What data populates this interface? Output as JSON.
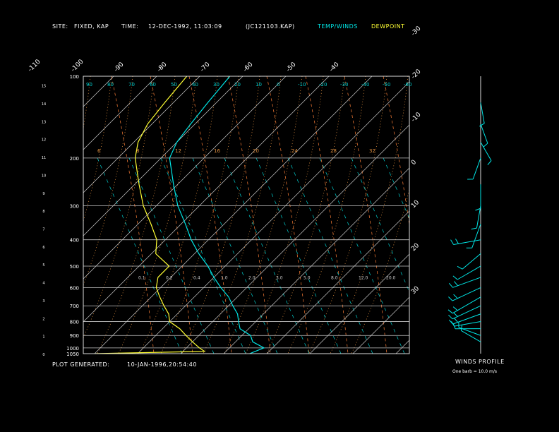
{
  "header": {
    "site_label": "SITE:",
    "site_value": "FIXED, KAP",
    "time_label": "TIME:",
    "time_value": "12-DEC-1992, 11:03:09",
    "file_id": "(JC121103.KAP)",
    "legend_temp": "TEMP/WINDS",
    "legend_dew": "DEWPOINT"
  },
  "footer": {
    "generated_label": "PLOT GENERATED:",
    "generated_value": "10-JAN-1996,20:54:40",
    "winds_title": "WINDS PROFILE",
    "barb_note": "One barb = 10.0 m/s"
  },
  "colors": {
    "background": "#000000",
    "temp": "#00e5e5",
    "dewpoint": "#ffff33",
    "isobar": "#c8c8c8",
    "isotherm": "#c8c8c8",
    "dry_adiabat": "#e09040",
    "mixing_ratio": "#00d0d0",
    "moist_adiabat": "#e07030"
  },
  "chart_data": {
    "type": "line",
    "title": "",
    "xlabel": "",
    "ylabel": "",
    "pressure_levels": [
      100,
      200,
      300,
      400,
      500,
      600,
      700,
      800,
      900,
      1000,
      1050
    ],
    "height_ticks_km": [
      0,
      1,
      2,
      3,
      4,
      5,
      6,
      7,
      8,
      9,
      10,
      11,
      12,
      13,
      14,
      15
    ],
    "isotherm_top_labels": [
      -110,
      -100,
      -90,
      -80,
      -70,
      -60,
      -50,
      -40
    ],
    "isotherm_right_labels": [
      -30,
      -20,
      -10,
      0,
      10,
      20,
      30
    ],
    "dry_adiabat_labels": [
      "90",
      "80",
      "70",
      "60",
      "50",
      "40",
      "30",
      "20",
      "10",
      "0",
      "-10",
      "-20",
      "-30",
      "-40",
      "-50",
      "-60",
      "-70"
    ],
    "mixing_ratio_labels": [
      "0.1",
      "0.2",
      "0.4",
      "1.0",
      "2.0",
      "3.0",
      "5.0",
      "8.0",
      "12.0",
      "20.0"
    ],
    "moist_adiabat_labels": [
      "6",
      "8",
      "12",
      "16",
      "20",
      "24",
      "28",
      "32"
    ],
    "temperature": [
      {
        "p": 1050,
        "t": 6
      },
      {
        "p": 1000,
        "t": 8
      },
      {
        "p": 950,
        "t": 4
      },
      {
        "p": 900,
        "t": 2
      },
      {
        "p": 850,
        "t": -2
      },
      {
        "p": 800,
        "t": -4
      },
      {
        "p": 750,
        "t": -6
      },
      {
        "p": 700,
        "t": -9
      },
      {
        "p": 650,
        "t": -12
      },
      {
        "p": 600,
        "t": -16
      },
      {
        "p": 550,
        "t": -20
      },
      {
        "p": 500,
        "t": -24
      },
      {
        "p": 450,
        "t": -29
      },
      {
        "p": 400,
        "t": -34
      },
      {
        "p": 350,
        "t": -39
      },
      {
        "p": 300,
        "t": -45
      },
      {
        "p": 250,
        "t": -51
      },
      {
        "p": 200,
        "t": -58
      },
      {
        "p": 175,
        "t": -60
      },
      {
        "p": 150,
        "t": -61
      },
      {
        "p": 125,
        "t": -62
      },
      {
        "p": 100,
        "t": -63
      }
    ],
    "dewpoint": [
      {
        "p": 1050,
        "t": -30
      },
      {
        "p": 1030,
        "t": -5
      },
      {
        "p": 1000,
        "t": -7
      },
      {
        "p": 950,
        "t": -10
      },
      {
        "p": 900,
        "t": -13
      },
      {
        "p": 850,
        "t": -16
      },
      {
        "p": 800,
        "t": -20
      },
      {
        "p": 750,
        "t": -22
      },
      {
        "p": 700,
        "t": -25
      },
      {
        "p": 650,
        "t": -28
      },
      {
        "p": 600,
        "t": -31
      },
      {
        "p": 550,
        "t": -33
      },
      {
        "p": 500,
        "t": -33
      },
      {
        "p": 450,
        "t": -39
      },
      {
        "p": 400,
        "t": -42
      },
      {
        "p": 350,
        "t": -47
      },
      {
        "p": 300,
        "t": -53
      },
      {
        "p": 250,
        "t": -59
      },
      {
        "p": 200,
        "t": -66
      },
      {
        "p": 175,
        "t": -69
      },
      {
        "p": 150,
        "t": -71
      },
      {
        "p": 125,
        "t": -72
      },
      {
        "p": 100,
        "t": -73
      }
    ],
    "winds": [
      {
        "p": 950,
        "dir": 300,
        "speed": 8
      },
      {
        "p": 900,
        "dir": 290,
        "speed": 9
      },
      {
        "p": 850,
        "dir": 270,
        "speed": 12
      },
      {
        "p": 800,
        "dir": 260,
        "speed": 14
      },
      {
        "p": 750,
        "dir": 250,
        "speed": 18
      },
      {
        "p": 700,
        "dir": 245,
        "speed": 20
      },
      {
        "p": 650,
        "dir": 240,
        "speed": 22
      },
      {
        "p": 600,
        "dir": 245,
        "speed": 20
      },
      {
        "p": 550,
        "dir": 250,
        "speed": 18
      },
      {
        "p": 500,
        "dir": 240,
        "speed": 14
      },
      {
        "p": 450,
        "dir": 230,
        "speed": 10
      },
      {
        "p": 400,
        "dir": 260,
        "speed": 15
      },
      {
        "p": 350,
        "dir": 200,
        "speed": 12
      },
      {
        "p": 300,
        "dir": 190,
        "speed": 8
      },
      {
        "p": 250,
        "dir": 180,
        "speed": 10
      },
      {
        "p": 200,
        "dir": 200,
        "speed": 8
      },
      {
        "p": 175,
        "dir": 150,
        "speed": 6
      },
      {
        "p": 150,
        "dir": 160,
        "speed": 5
      },
      {
        "p": 125,
        "dir": 170,
        "speed": 6
      }
    ]
  }
}
